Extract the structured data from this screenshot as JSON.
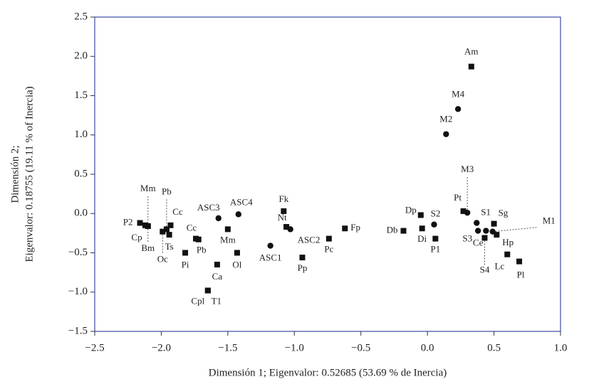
{
  "chart_data": {
    "type": "scatter",
    "xlabel": "Dimensión 1; Eigenvalor: 0.52685 (53.69 % de Inercia)",
    "ylabel": [
      "Dimensión 2;",
      "Eigenvalor: 0.18755 (19.11 % of Inercia)"
    ],
    "xlim": [
      -2.5,
      1.0
    ],
    "ylim": [
      -1.5,
      2.5
    ],
    "xticks": [
      {
        "value": -2.5,
        "label": "−2.5"
      },
      {
        "value": -2.0,
        "label": "−2.0"
      },
      {
        "value": -1.5,
        "label": "−1.5"
      },
      {
        "value": -1.0,
        "label": "−1.0"
      },
      {
        "value": -0.5,
        "label": "−0.5"
      },
      {
        "value": 0,
        "label": "0.0"
      },
      0.5,
      {
        "value": 1.0,
        "label": "1.0"
      }
    ],
    "yticks": [
      {
        "value": -1.5,
        "label": "−1.5"
      },
      {
        "value": -1.0,
        "label": "−1.0"
      },
      {
        "value": -0.5,
        "label": "−0.5"
      },
      {
        "value": 0,
        "label": "0.0"
      },
      0.5,
      {
        "value": 1.0,
        "label": "1.0"
      },
      1.5,
      {
        "value": 2.0,
        "label": "2.0"
      },
      2.5
    ],
    "frame_color": "#3b4ba6",
    "color": "#111111",
    "points": [
      {
        "label": "Am",
        "x": 0.33,
        "y": 1.87,
        "marker": "square"
      },
      {
        "label": "M4",
        "x": 0.23,
        "y": 1.33,
        "marker": "circle"
      },
      {
        "label": "M2",
        "x": 0.14,
        "y": 1.01,
        "marker": "circle"
      },
      {
        "label": "Pt",
        "x": 0.27,
        "y": 0.03,
        "marker": "square"
      },
      {
        "label": "M3",
        "x": 0.3,
        "y": 0.01,
        "marker": "circle"
      },
      {
        "label": "S1",
        "x": 0.37,
        "y": -0.12,
        "marker": "circle"
      },
      {
        "label": "Sg",
        "x": 0.5,
        "y": -0.13,
        "marker": "square"
      },
      {
        "label": "M1",
        "x": 0.49,
        "y": -0.23,
        "marker": "circle"
      },
      {
        "label": "Hp",
        "x": 0.52,
        "y": -0.27,
        "marker": "square"
      },
      {
        "label": "S3",
        "x": 0.38,
        "y": -0.22,
        "marker": "circle"
      },
      {
        "label": "Ce",
        "x": 0.44,
        "y": -0.22,
        "marker": "circle"
      },
      {
        "label": "S4",
        "x": 0.43,
        "y": -0.31,
        "marker": "square"
      },
      {
        "label": "Lc",
        "x": 0.6,
        "y": -0.52,
        "marker": "square"
      },
      {
        "label": "Pl",
        "x": 0.69,
        "y": -0.61,
        "marker": "square"
      },
      {
        "label": "Dp",
        "x": -0.05,
        "y": -0.02,
        "marker": "square"
      },
      {
        "label": "S2",
        "x": 0.05,
        "y": -0.14,
        "marker": "circle"
      },
      {
        "label": "Db",
        "x": -0.18,
        "y": -0.22,
        "marker": "square"
      },
      {
        "label": "Di",
        "x": -0.04,
        "y": -0.19,
        "marker": "square"
      },
      {
        "label": "P1",
        "x": 0.06,
        "y": -0.32,
        "marker": "square"
      },
      {
        "label": "Fp",
        "x": -0.62,
        "y": -0.19,
        "marker": "square"
      },
      {
        "label": "Pc",
        "x": -0.74,
        "y": -0.32,
        "marker": "square"
      },
      {
        "label": "Pp",
        "x": -0.94,
        "y": -0.56,
        "marker": "square"
      },
      {
        "label": "ASC2",
        "x": -1.03,
        "y": -0.2,
        "marker": "circle"
      },
      {
        "label": "Nt",
        "x": -1.06,
        "y": -0.17,
        "marker": "square"
      },
      {
        "label": "Fk",
        "x": -1.08,
        "y": 0.03,
        "marker": "square"
      },
      {
        "label": "ASC1",
        "x": -1.18,
        "y": -0.41,
        "marker": "circle"
      },
      {
        "label": "Ol",
        "x": -1.43,
        "y": -0.5,
        "marker": "square"
      },
      {
        "label": "ASC4",
        "x": -1.42,
        "y": -0.01,
        "marker": "circle"
      },
      {
        "label": "Mm",
        "x": -1.5,
        "y": -0.2,
        "marker": "square"
      },
      {
        "label": "ASC3",
        "x": -1.57,
        "y": -0.06,
        "marker": "circle"
      },
      {
        "label": "Ca",
        "x": -1.58,
        "y": -0.65,
        "marker": "square"
      },
      {
        "label": "T1",
        "x": -1.65,
        "y": -0.98,
        "marker": "square"
      },
      {
        "label": "Cpl",
        "x": -1.65,
        "y": -0.98,
        "marker": "square"
      },
      {
        "label": "Pb",
        "x": -1.72,
        "y": -0.33,
        "marker": "square"
      },
      {
        "label": "Cc",
        "x": -1.74,
        "y": -0.32,
        "marker": "square"
      },
      {
        "label": "Pi",
        "x": -1.82,
        "y": -0.5,
        "marker": "square"
      },
      {
        "label": "Ts",
        "x": -1.94,
        "y": -0.27,
        "marker": "square"
      },
      {
        "label": "Cc",
        "x": -1.93,
        "y": -0.15,
        "marker": "square"
      },
      {
        "label": "Oc",
        "x": -1.99,
        "y": -0.23,
        "marker": "square"
      },
      {
        "label": "Pb",
        "x": -1.96,
        "y": -0.2,
        "marker": "square"
      },
      {
        "label": "Bm",
        "x": -2.1,
        "y": -0.16,
        "marker": "square"
      },
      {
        "label": "P2",
        "x": -2.16,
        "y": -0.12,
        "marker": "square"
      },
      {
        "label": "Cp",
        "x": -2.12,
        "y": -0.15,
        "marker": "square"
      },
      {
        "label": "Mm",
        "x": -2.1,
        "y": -0.16,
        "marker": "square"
      }
    ]
  }
}
